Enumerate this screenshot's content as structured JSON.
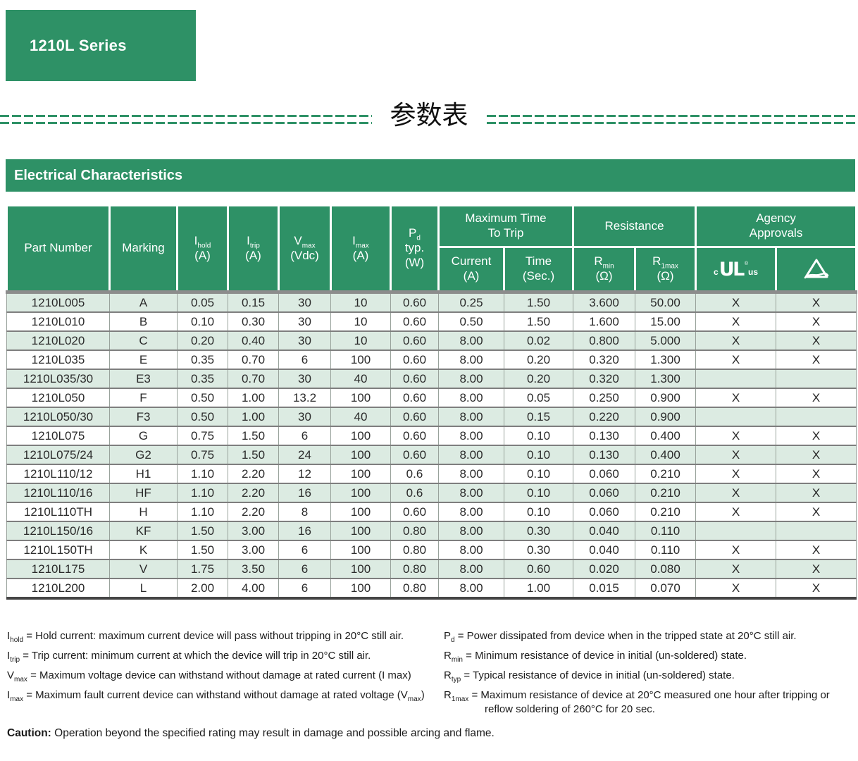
{
  "colors": {
    "accent": "#2e9166",
    "row_band": "#dcebe2"
  },
  "page": {
    "series_badge": "1210L Series",
    "section_title_cn": "参数表"
  },
  "table": {
    "banner": "Electrical Characteristics",
    "headers": {
      "part_number": "Part Number",
      "marking": "Marking",
      "i_hold": {
        "sym": "I",
        "sub": "hold",
        "unit": "(A)"
      },
      "i_trip": {
        "sym": "I",
        "sub": "trip",
        "unit": "(A)"
      },
      "v_max": {
        "sym": "V",
        "sub": "max",
        "unit": "(Vdc)"
      },
      "i_max": {
        "sym": "I",
        "sub": "max",
        "unit": "(A)"
      },
      "p_d": {
        "sym": "P",
        "sub": "d",
        "line2": "typ.",
        "unit": "(W)"
      },
      "max_time_to_trip": {
        "line1": "Maximum Time",
        "line2": "To Trip"
      },
      "trip_current": {
        "label": "Current",
        "unit": "(A)"
      },
      "trip_time": {
        "label": "Time",
        "unit": "(Sec.)"
      },
      "resistance": "Resistance",
      "r_min": {
        "sym": "R",
        "sub": "min",
        "unit": "(Ω)"
      },
      "r_1max": {
        "sym": "R",
        "sub": "1max",
        "unit": "(Ω)"
      },
      "agency": {
        "line1": "Agency",
        "line2": "Approvals"
      },
      "ul_logo": {
        "prefix": "c",
        "mark": "UL",
        "reg": "®",
        "suffix": "us"
      }
    },
    "col_keys": [
      "part-number",
      "marking",
      "i-hold",
      "i-trip",
      "v-max",
      "i-max",
      "p-d",
      "trip-current",
      "trip-time",
      "r-min",
      "r-1max",
      "ul-approval",
      "triangle-approval"
    ],
    "rows": [
      {
        "cells": [
          "1210L005",
          "A",
          "0.05",
          "0.15",
          "30",
          "10",
          "0.60",
          "0.25",
          "1.50",
          "3.600",
          "50.00",
          "X",
          "X"
        ]
      },
      {
        "cells": [
          "1210L010",
          "B",
          "0.10",
          "0.30",
          "30",
          "10",
          "0.60",
          "0.50",
          "1.50",
          "1.600",
          "15.00",
          "X",
          "X"
        ]
      },
      {
        "cells": [
          "1210L020",
          "C",
          "0.20",
          "0.40",
          "30",
          "10",
          "0.60",
          "8.00",
          "0.02",
          "0.800",
          "5.000",
          "X",
          "X"
        ]
      },
      {
        "cells": [
          "1210L035",
          "E",
          "0.35",
          "0.70",
          "6",
          "100",
          "0.60",
          "8.00",
          "0.20",
          "0.320",
          "1.300",
          "X",
          "X"
        ]
      },
      {
        "cells": [
          "1210L035/30",
          "E3",
          "0.35",
          "0.70",
          "30",
          "40",
          "0.60",
          "8.00",
          "0.20",
          "0.320",
          "1.300",
          "",
          ""
        ]
      },
      {
        "cells": [
          "1210L050",
          "F",
          "0.50",
          "1.00",
          "13.2",
          "100",
          "0.60",
          "8.00",
          "0.05",
          "0.250",
          "0.900",
          "X",
          "X"
        ]
      },
      {
        "cells": [
          "1210L050/30",
          "F3",
          "0.50",
          "1.00",
          "30",
          "40",
          "0.60",
          "8.00",
          "0.15",
          "0.220",
          "0.900",
          "",
          ""
        ]
      },
      {
        "cells": [
          "1210L075",
          "G",
          "0.75",
          "1.50",
          "6",
          "100",
          "0.60",
          "8.00",
          "0.10",
          "0.130",
          "0.400",
          "X",
          "X"
        ]
      },
      {
        "cells": [
          "1210L075/24",
          "G2",
          "0.75",
          "1.50",
          "24",
          "100",
          "0.60",
          "8.00",
          "0.10",
          "0.130",
          "0.400",
          "X",
          "X"
        ]
      },
      {
        "cells": [
          "1210L110/12",
          "H1",
          "1.10",
          "2.20",
          "12",
          "100",
          "0.6",
          "8.00",
          "0.10",
          "0.060",
          "0.210",
          "X",
          "X"
        ]
      },
      {
        "cells": [
          "1210L110/16",
          "HF",
          "1.10",
          "2.20",
          "16",
          "100",
          "0.6",
          "8.00",
          "0.10",
          "0.060",
          "0.210",
          "X",
          "X"
        ]
      },
      {
        "cells": [
          "1210L110TH",
          "H",
          "1.10",
          "2.20",
          "8",
          "100",
          "0.60",
          "8.00",
          "0.10",
          "0.060",
          "0.210",
          "X",
          "X"
        ]
      },
      {
        "cells": [
          "1210L150/16",
          "KF",
          "1.50",
          "3.00",
          "16",
          "100",
          "0.80",
          "8.00",
          "0.30",
          "0.040",
          "0.110",
          "",
          ""
        ]
      },
      {
        "cells": [
          "1210L150TH",
          "K",
          "1.50",
          "3.00",
          "6",
          "100",
          "0.80",
          "8.00",
          "0.30",
          "0.040",
          "0.110",
          "X",
          "X"
        ]
      },
      {
        "cells": [
          "1210L175",
          "V",
          "1.75",
          "3.50",
          "6",
          "100",
          "0.80",
          "8.00",
          "0.60",
          "0.020",
          "0.080",
          "X",
          "X"
        ]
      },
      {
        "cells": [
          "1210L200",
          "L",
          "2.00",
          "4.00",
          "6",
          "100",
          "0.80",
          "8.00",
          "1.00",
          "0.015",
          "0.070",
          "X",
          "X"
        ]
      }
    ]
  },
  "footnotes": {
    "left": [
      {
        "segments": [
          {
            "t": "I"
          },
          {
            "sub": "hold"
          },
          {
            "t": " = Hold current: maximum current device will pass without tripping in 20°C still air."
          }
        ]
      },
      {
        "segments": [
          {
            "t": "I"
          },
          {
            "sub": "trip"
          },
          {
            "t": " = Trip current: minimum current at which the device will trip in 20°C still air."
          }
        ]
      },
      {
        "segments": [
          {
            "t": "V"
          },
          {
            "sub": "max"
          },
          {
            "t": " = Maximum voltage device can withstand without damage at rated current (I max)"
          }
        ]
      },
      {
        "segments": [
          {
            "t": "I"
          },
          {
            "sub": "max"
          },
          {
            "t": " = Maximum fault current device can withstand without damage at rated voltage (V"
          },
          {
            "sub": "max"
          },
          {
            "t": ")"
          }
        ]
      }
    ],
    "right": [
      {
        "segments": [
          {
            "t": "P"
          },
          {
            "sub": "d"
          },
          {
            "t": " = Power dissipated from device when in the tripped state at 20°C still air."
          }
        ]
      },
      {
        "segments": [
          {
            "t": "R"
          },
          {
            "sub": "min"
          },
          {
            "t": " = Minimum resistance of device in initial (un-soldered) state."
          }
        ]
      },
      {
        "segments": [
          {
            "t": "R"
          },
          {
            "sub": "typ"
          },
          {
            "t": " = Typical resistance of device in initial (un-soldered) state."
          }
        ]
      },
      {
        "segments": [
          {
            "t": "R"
          },
          {
            "sub": "1max"
          },
          {
            "t": " = Maximum resistance of device at 20°C measured one hour after tripping or reflow soldering of 260°C for 20 sec."
          }
        ]
      }
    ]
  },
  "caution": {
    "label": "Caution:",
    "text": " Operation beyond the specified rating may result in damage and possible arcing and flame."
  }
}
